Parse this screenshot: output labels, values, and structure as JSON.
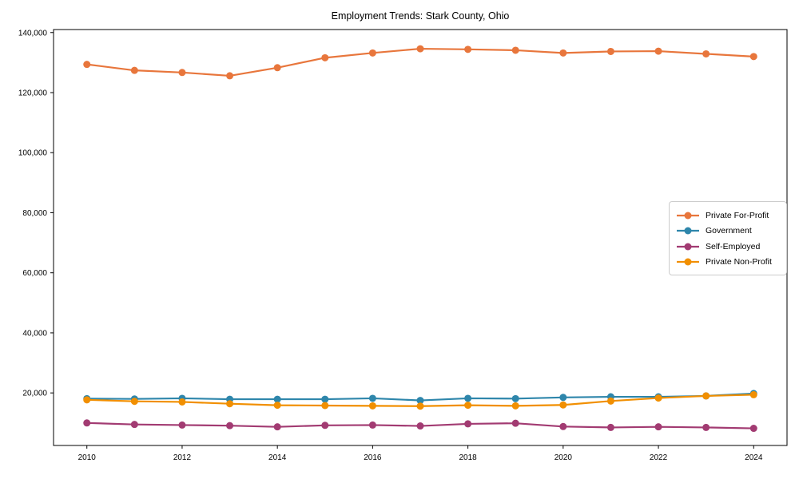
{
  "title": "Employment Trends: Stark County, Ohio",
  "colors": {
    "background": "#ffffff",
    "axis": "#000000",
    "tick_label": "#000000",
    "legend_border": "#cccccc",
    "private_for_profit": "#E8763C",
    "government": "#2E86AB",
    "self_employed": "#A23B72",
    "private_non_profit": "#F18F01"
  },
  "legend": {
    "entries": [
      "Private For-Profit",
      "Government",
      "Self-Employed",
      "Private Non-Profit"
    ]
  },
  "chart_data": {
    "type": "line",
    "title": "Employment Trends: Stark County, Ohio",
    "xlabel": "",
    "ylabel": "",
    "x": [
      2010,
      2011,
      2012,
      2013,
      2014,
      2015,
      2016,
      2017,
      2018,
      2019,
      2020,
      2021,
      2022,
      2023,
      2024
    ],
    "series": [
      {
        "name": "Private For-Profit",
        "color": "#E8763C",
        "values": [
          129400,
          127400,
          126700,
          125600,
          128300,
          131600,
          133200,
          134600,
          134400,
          134100,
          133200,
          133700,
          133800,
          132900,
          132000
        ]
      },
      {
        "name": "Government",
        "color": "#2E86AB",
        "values": [
          18100,
          18000,
          18200,
          17900,
          17900,
          17900,
          18200,
          17500,
          18200,
          18100,
          18500,
          18700,
          18700,
          19000,
          19800
        ]
      },
      {
        "name": "Self-Employed",
        "color": "#A23B72",
        "values": [
          10000,
          9500,
          9300,
          9100,
          8700,
          9200,
          9300,
          9000,
          9700,
          9900,
          8800,
          8500,
          8700,
          8500,
          8200
        ]
      },
      {
        "name": "Private Non-Profit",
        "color": "#F18F01",
        "values": [
          17700,
          17200,
          17000,
          16400,
          15900,
          15800,
          15700,
          15600,
          15900,
          15700,
          16000,
          17300,
          18300,
          19000,
          19400
        ]
      }
    ],
    "xlim": [
      2009.3,
      2024.7
    ],
    "ylim": [
      2500,
      141000
    ],
    "x_ticks": [
      2010,
      2012,
      2014,
      2016,
      2018,
      2020,
      2022,
      2024
    ],
    "x_tick_labels": [
      "2010",
      "2012",
      "2014",
      "2016",
      "2018",
      "2020",
      "2022",
      "2024"
    ],
    "y_ticks": [
      20000,
      40000,
      60000,
      80000,
      100000,
      120000,
      140000
    ],
    "y_tick_labels": [
      "20,000",
      "40,000",
      "60,000",
      "80,000",
      "100,000",
      "120,000",
      "140,000"
    ],
    "grid": false,
    "legend_position": "center-right",
    "marker": "circle"
  }
}
